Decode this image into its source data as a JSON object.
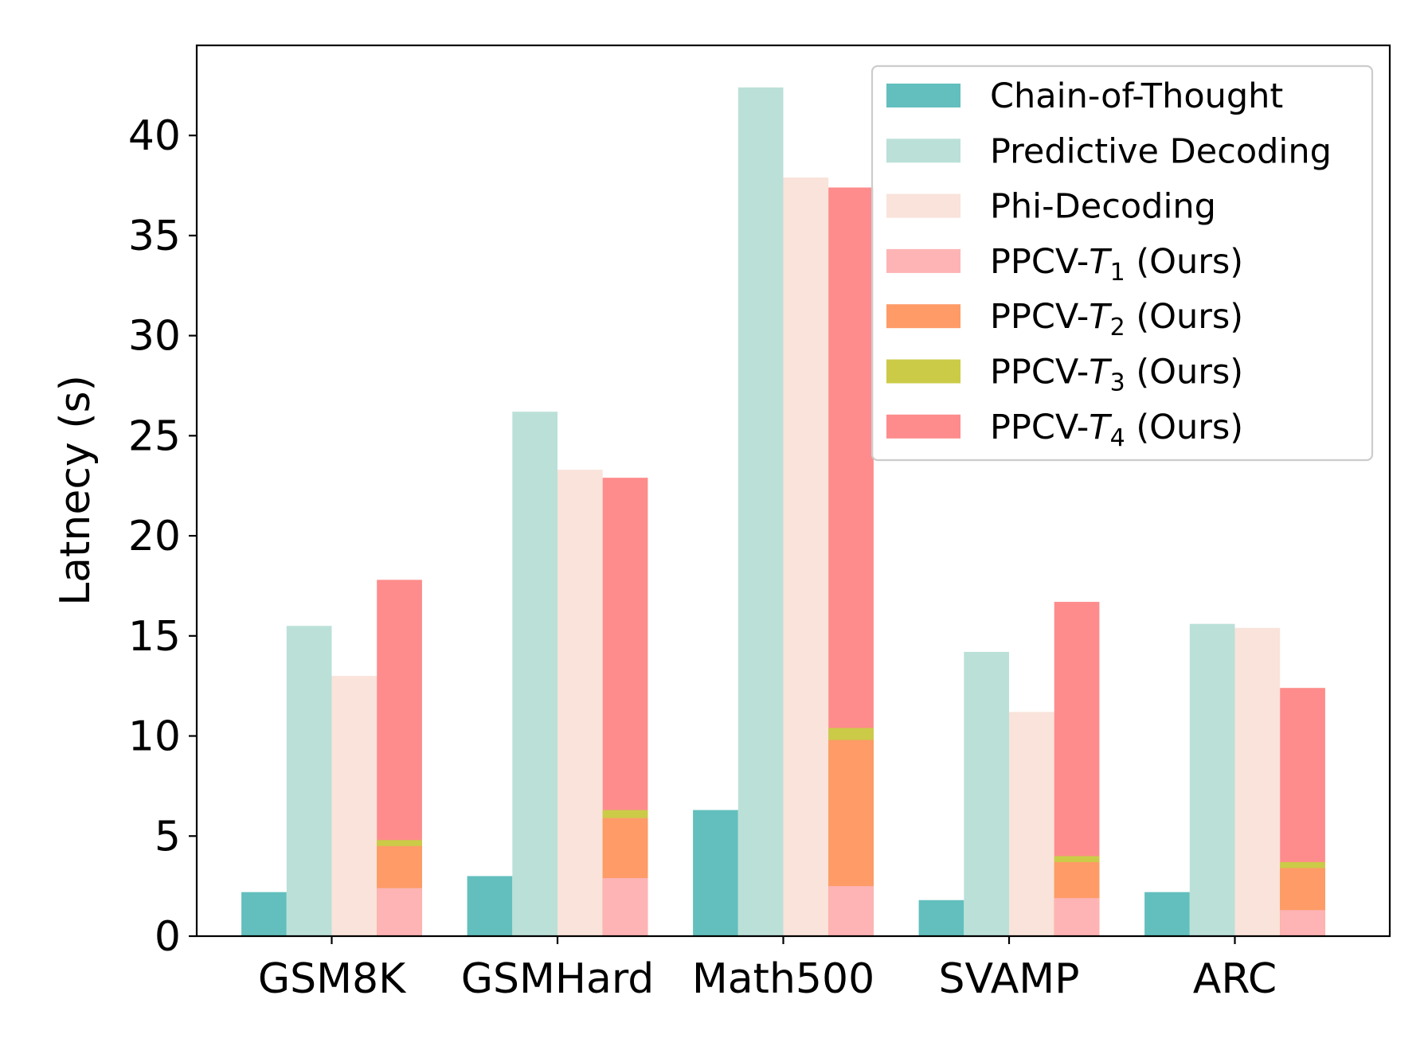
{
  "chart_data": {
    "type": "bar",
    "title": "",
    "xlabel": "",
    "ylabel": "Latnecy (s)",
    "ylim": [
      0,
      44.5
    ],
    "yticks": [
      0,
      5,
      10,
      15,
      20,
      25,
      30,
      35,
      40
    ],
    "grid": false,
    "legend_position": "top-right",
    "categories": [
      "GSM8K",
      "GSMHard",
      "Math500",
      "SVAMP",
      "ARC"
    ],
    "series": [
      {
        "name": "Chain-of-Thought",
        "color": "#62bfbd",
        "values": [
          2.2,
          3.0,
          6.3,
          1.8,
          2.2
        ]
      },
      {
        "name": "Predictive Decoding",
        "color": "#bbe0d8",
        "values": [
          15.5,
          26.2,
          42.4,
          14.2,
          15.6
        ]
      },
      {
        "name": "Phi-Decoding",
        "color": "#f9e3da",
        "values": [
          13.0,
          23.3,
          37.9,
          11.2,
          15.4
        ]
      },
      {
        "name": "PPCV-T1 (Ours)",
        "color": "#feb4b5",
        "values": [
          2.4,
          2.9,
          2.5,
          1.9,
          1.3
        ]
      },
      {
        "name": "PPCV-T2 (Ours)",
        "color": "#fe9b67",
        "values": [
          4.5,
          5.9,
          9.8,
          3.7,
          3.4
        ]
      },
      {
        "name": "PPCV-T3 (Ours)",
        "color": "#cbcb48",
        "values": [
          4.8,
          6.3,
          10.4,
          4.0,
          3.7
        ]
      },
      {
        "name": "PPCV-T4 (Ours)",
        "color": "#fe8c8c",
        "values": [
          17.8,
          22.9,
          37.4,
          16.7,
          12.4
        ]
      }
    ],
    "legend": [
      {
        "prefix": "Chain-of-Thought",
        "var": "",
        "sub": "",
        "suffix": ""
      },
      {
        "prefix": "Predictive Decoding",
        "var": "",
        "sub": "",
        "suffix": ""
      },
      {
        "prefix": "Phi-Decoding",
        "var": "",
        "sub": "",
        "suffix": ""
      },
      {
        "prefix": "PPCV-",
        "var": "T",
        "sub": "1",
        "suffix": " (Ours)"
      },
      {
        "prefix": "PPCV-",
        "var": "T",
        "sub": "2",
        "suffix": " (Ours)"
      },
      {
        "prefix": "PPCV-",
        "var": "T",
        "sub": "3",
        "suffix": " (Ours)"
      },
      {
        "prefix": "PPCV-",
        "var": "T",
        "sub": "4",
        "suffix": " (Ours)"
      }
    ]
  }
}
